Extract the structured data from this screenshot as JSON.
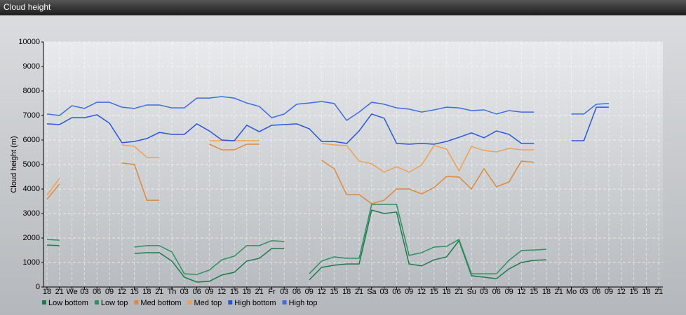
{
  "chart_data": {
    "type": "line",
    "title": "Cloud height",
    "y_label": "Cloud height (m)",
    "categories": [
      "18",
      "21",
      "We",
      "03",
      "06",
      "09",
      "12",
      "15",
      "18",
      "21",
      "Th",
      "03",
      "06",
      "09",
      "12",
      "15",
      "18",
      "21",
      "Fr",
      "03",
      "06",
      "09",
      "12",
      "15",
      "18",
      "21",
      "Sa",
      "03",
      "06",
      "09",
      "12",
      "15",
      "18",
      "21",
      "Su",
      "03",
      "06",
      "09",
      "12",
      "15",
      "18",
      "21",
      "Mo",
      "03",
      "06",
      "09",
      "12",
      "15",
      "18",
      "21"
    ],
    "ylim": [
      0,
      10000
    ],
    "yticks": [
      0,
      1000,
      2000,
      3000,
      4000,
      5000,
      6000,
      7000,
      8000,
      9000,
      10000
    ],
    "grid": true,
    "series": [
      {
        "name": "Low bottom",
        "color": "#1e7a4c",
        "values": [
          1710,
          1690,
          null,
          null,
          null,
          null,
          null,
          1370,
          1400,
          1400,
          1060,
          400,
          200,
          230,
          490,
          600,
          1060,
          1170,
          1570,
          1570,
          null,
          290,
          800,
          890,
          940,
          940,
          3140,
          3000,
          3060,
          940,
          860,
          1110,
          1230,
          1890,
          460,
          400,
          340,
          740,
          1000,
          1090,
          1110,
          null,
          null,
          null,
          null,
          null,
          null,
          null,
          null,
          null
        ]
      },
      {
        "name": "Low top",
        "color": "#2e9060",
        "values": [
          1940,
          1910,
          null,
          null,
          null,
          null,
          null,
          1630,
          1690,
          1690,
          1430,
          540,
          510,
          690,
          1110,
          1260,
          1690,
          1690,
          1890,
          1860,
          null,
          540,
          1060,
          1230,
          1170,
          1170,
          3370,
          3370,
          3370,
          1290,
          1400,
          1630,
          1660,
          1940,
          540,
          540,
          540,
          1090,
          1490,
          1510,
          1540,
          null,
          null,
          null,
          null,
          null,
          null,
          null,
          null,
          null
        ]
      },
      {
        "name": "Med bottom",
        "color": "#e0883a",
        "values": [
          3580,
          4200,
          null,
          null,
          null,
          null,
          5060,
          5000,
          3540,
          3540,
          null,
          null,
          null,
          5830,
          5600,
          5600,
          5830,
          5830,
          null,
          null,
          null,
          null,
          5170,
          4830,
          3770,
          3770,
          3400,
          3540,
          4000,
          4000,
          3800,
          4060,
          4510,
          4490,
          4000,
          4830,
          4090,
          4290,
          5140,
          5090,
          null,
          null,
          null,
          null,
          null,
          null,
          null,
          null,
          null,
          null
        ]
      },
      {
        "name": "Med top",
        "color": "#f0a050",
        "values": [
          3750,
          4430,
          null,
          null,
          null,
          null,
          5800,
          5740,
          5290,
          5290,
          null,
          null,
          null,
          5970,
          5970,
          5970,
          5970,
          5970,
          null,
          null,
          null,
          null,
          5860,
          5800,
          5770,
          5140,
          5030,
          4690,
          4910,
          4690,
          4970,
          5770,
          5630,
          4740,
          5740,
          5570,
          5510,
          5660,
          5600,
          5600,
          null,
          null,
          null,
          null,
          null,
          null,
          null,
          null,
          null,
          null
        ]
      },
      {
        "name": "High bottom",
        "color": "#2a55d8",
        "values": [
          6660,
          6630,
          6910,
          6910,
          7030,
          6690,
          5890,
          5940,
          6060,
          6310,
          6230,
          6230,
          6660,
          6370,
          6000,
          5970,
          6600,
          6340,
          6600,
          6630,
          6660,
          6460,
          5940,
          5940,
          5860,
          6370,
          7060,
          6890,
          5860,
          5830,
          5860,
          5830,
          5940,
          6110,
          6290,
          6090,
          6370,
          6230,
          5860,
          5860,
          null,
          null,
          5970,
          5970,
          7340,
          7340,
          null,
          null,
          null,
          null
        ]
      },
      {
        "name": "High top",
        "color": "#3e6ce0",
        "values": [
          7060,
          7000,
          7400,
          7290,
          7540,
          7540,
          7340,
          7290,
          7430,
          7430,
          7310,
          7310,
          7710,
          7710,
          7770,
          7710,
          7510,
          7370,
          6910,
          7060,
          7460,
          7510,
          7570,
          7490,
          6800,
          7140,
          7540,
          7460,
          7310,
          7260,
          7140,
          7230,
          7340,
          7310,
          7200,
          7230,
          7060,
          7200,
          7140,
          7140,
          null,
          null,
          7060,
          7060,
          7460,
          7490,
          null,
          null,
          null,
          null
        ]
      }
    ]
  }
}
